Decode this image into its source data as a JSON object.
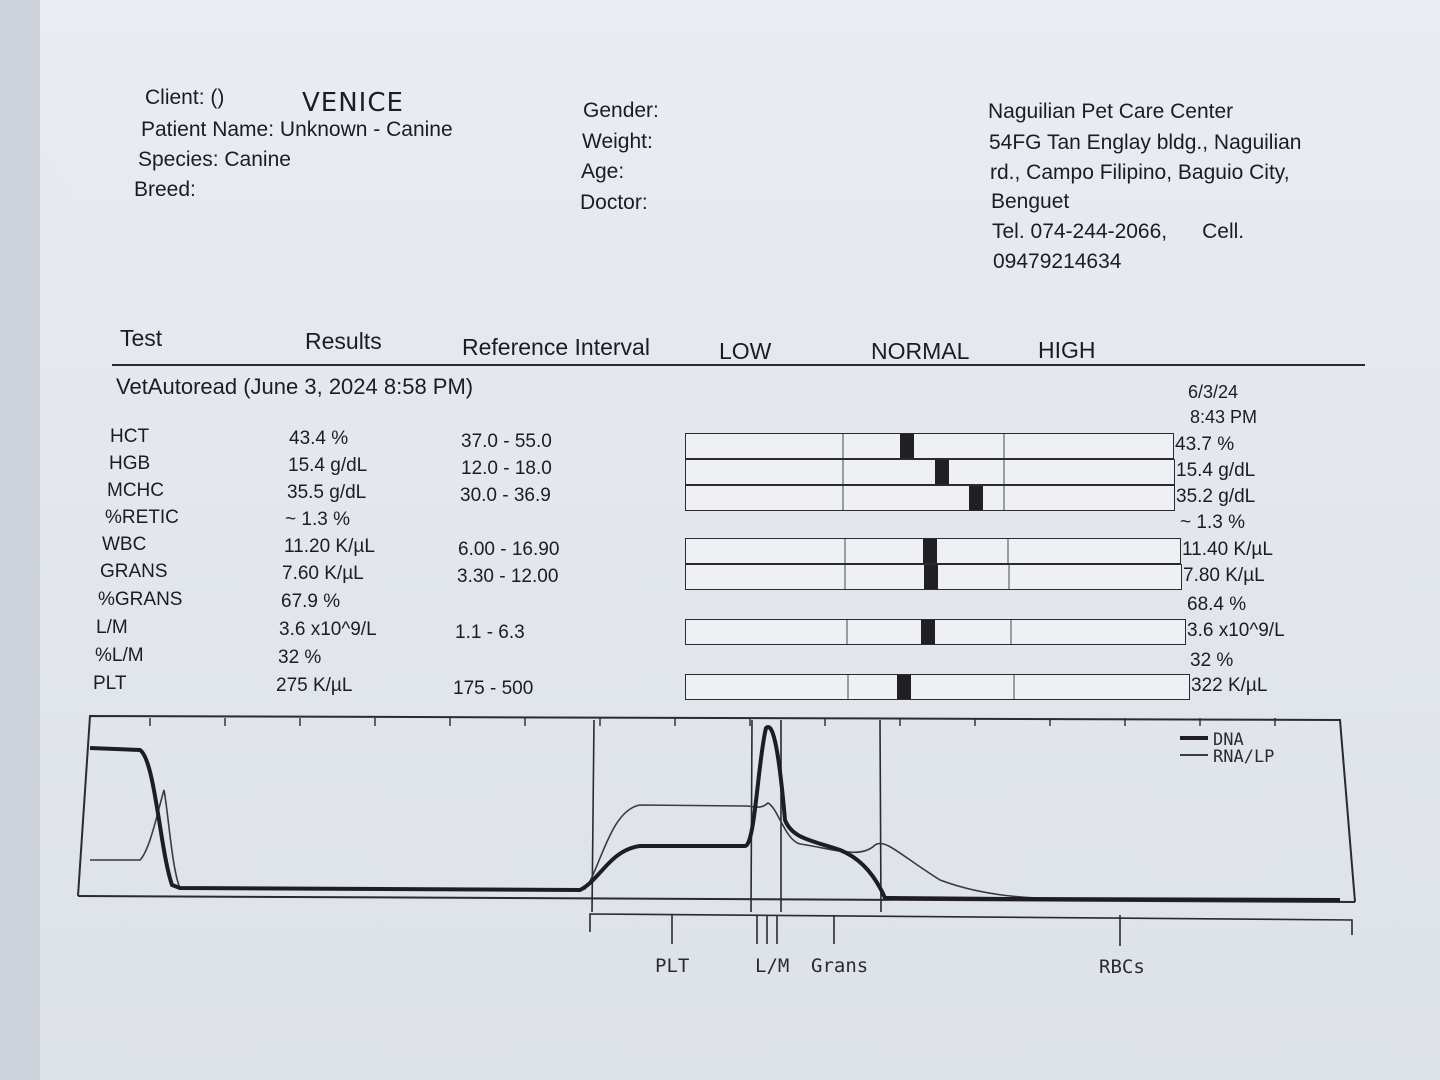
{
  "header": {
    "client_label": "Client: ()",
    "client_handwritten": "VENICE",
    "patient": "Patient Name: Unknown - Canine",
    "species": "Species: Canine",
    "breed": "Breed:",
    "gender": "Gender:",
    "weight": "Weight:",
    "age": "Age:",
    "doctor": "Doctor:",
    "clinic_lines": [
      "Naguilian Pet Care Center",
      "54FG Tan Englay bldg., Naguilian",
      "rd., Campo Filipino, Baguio City,",
      "Benguet",
      "Tel. 074-244-2066,      Cell.",
      "09479214634"
    ]
  },
  "columns": {
    "test": "Test",
    "results": "Results",
    "reference": "Reference Interval",
    "low": "LOW",
    "normal": "NORMAL",
    "high": "HIGH"
  },
  "run": {
    "title": "VetAutoread (June 3, 2024 8:58 PM)",
    "date": "6/3/24",
    "time": "8:43 PM"
  },
  "rows": [
    {
      "test": "HCT",
      "result": "43.4 %",
      "ref": "37.0 - 55.0",
      "prev": "43.7 %",
      "marker_fraction": 0.44
    },
    {
      "test": "HGB",
      "result": "15.4 g/dL",
      "ref": "12.0 - 18.0",
      "prev": "15.4 g/dL",
      "marker_fraction": 0.51
    },
    {
      "test": "MCHC",
      "result": "35.5 g/dL",
      "ref": "30.0 - 36.9",
      "prev": "35.2 g/dL",
      "marker_fraction": 0.58
    },
    {
      "test": "%RETIC",
      "result": "~ 1.3 %",
      "ref": "",
      "prev": "~ 1.3 %",
      "marker_fraction": null
    },
    {
      "test": "WBC",
      "result": "11.20 K/µL",
      "ref": "6.00 - 16.90",
      "prev": "11.40 K/µL",
      "marker_fraction": 0.48
    },
    {
      "test": "GRANS",
      "result": "7.60 K/µL",
      "ref": "3.30 - 12.00",
      "prev": "7.80 K/µL",
      "marker_fraction": 0.48
    },
    {
      "test": "%GRANS",
      "result": "67.9 %",
      "ref": "",
      "prev": "68.4 %",
      "marker_fraction": null
    },
    {
      "test": "L/M",
      "result": "3.6 x10^9/L",
      "ref": "1.1 - 6.3",
      "prev": "3.6 x10^9/L",
      "marker_fraction": 0.47
    },
    {
      "test": "%L/M",
      "result": "32 %",
      "ref": "",
      "prev": "32 %",
      "marker_fraction": null
    },
    {
      "test": "PLT",
      "result": "275 K/µL",
      "ref": "175 - 500",
      "prev": "322 K/µL",
      "marker_fraction": 0.42
    }
  ],
  "histogram": {
    "legend": [
      "DNA",
      "RNA/LP"
    ],
    "regions": [
      "PLT",
      "L/M",
      "Grans",
      "RBCs"
    ]
  }
}
